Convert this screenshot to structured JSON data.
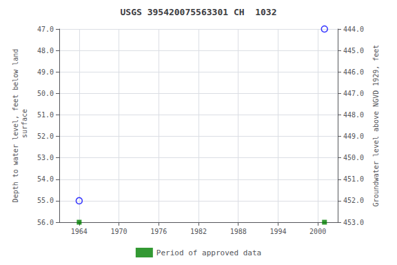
{
  "chart_data": {
    "type": "scatter",
    "title": "USGS 395420075563301 CH  1032",
    "ylabel": "Depth to water level, feet below land\n surface",
    "y2label": "Groundwater level above NGVD 1929, feet",
    "xlim": [
      1961,
      2003
    ],
    "xticks": [
      1964,
      1970,
      1976,
      1982,
      1988,
      1994,
      2000
    ],
    "ylim": [
      47.0,
      56.0
    ],
    "yticks": [
      {
        "value": 47.0,
        "label": "47.0"
      },
      {
        "value": 48.0,
        "label": "48.0"
      },
      {
        "value": 49.0,
        "label": "49.0"
      },
      {
        "value": 50.0,
        "label": "50.0"
      },
      {
        "value": 51.0,
        "label": "51.0"
      },
      {
        "value": 52.0,
        "label": "52.0"
      },
      {
        "value": 53.0,
        "label": "53.0"
      },
      {
        "value": 54.0,
        "label": "54.0"
      },
      {
        "value": 55.0,
        "label": "55.0"
      },
      {
        "value": 56.0,
        "label": "56.0"
      }
    ],
    "y2lim": [
      444.0,
      453.0
    ],
    "y2ticks": [
      {
        "value": 444.0,
        "label": "444.0"
      },
      {
        "value": 445.0,
        "label": "445.0"
      },
      {
        "value": 446.0,
        "label": "446.0"
      },
      {
        "value": 447.0,
        "label": "447.0"
      },
      {
        "value": 448.0,
        "label": "448.0"
      },
      {
        "value": 449.0,
        "label": "449.0"
      },
      {
        "value": 450.0,
        "label": "450.0"
      },
      {
        "value": 451.0,
        "label": "451.0"
      },
      {
        "value": 452.0,
        "label": "452.0"
      },
      {
        "value": 453.0,
        "label": "453.0"
      }
    ],
    "series": [
      {
        "x": [
          1964.0,
          2001.0
        ],
        "values": [
          55.0,
          47.0
        ],
        "color": "#0000ff",
        "marker": "open circle"
      },
      {
        "name": "Period of approved data",
        "x": [
          1964.0,
          2001.0
        ],
        "values": [
          56.0,
          56.0
        ],
        "color": "#008000",
        "marker": "square"
      }
    ],
    "grid": true,
    "legend": "bottom"
  }
}
